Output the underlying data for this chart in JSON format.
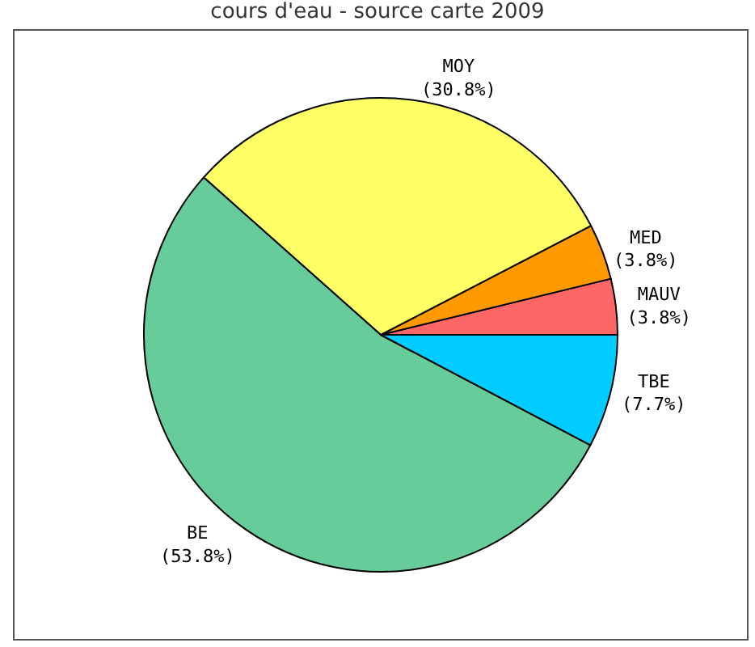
{
  "chart_data": {
    "type": "pie",
    "title": "cours d'eau - source carte 2009",
    "categories": [
      "MAUV",
      "MED",
      "MOY",
      "BE",
      "TBE"
    ],
    "values": [
      3.8,
      3.8,
      30.8,
      53.8,
      7.7
    ],
    "value_labels": [
      "(3.8%)",
      "(3.8%)",
      "(30.8%)",
      "(53.8%)",
      "(7.7%)"
    ],
    "colors": [
      "#ff6666",
      "#ff9900",
      "#ffff66",
      "#66cc99",
      "#00ccff"
    ],
    "legend": false
  }
}
